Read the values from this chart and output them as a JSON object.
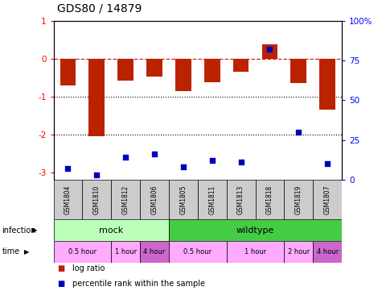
{
  "title": "GDS80 / 14879",
  "samples": [
    "GSM1804",
    "GSM1810",
    "GSM1812",
    "GSM1806",
    "GSM1805",
    "GSM1811",
    "GSM1813",
    "GSM1818",
    "GSM1819",
    "GSM1807"
  ],
  "log_ratio": [
    -0.72,
    -2.05,
    -0.58,
    -0.48,
    -0.85,
    -0.62,
    -0.35,
    0.38,
    -0.65,
    -1.35
  ],
  "percentile": [
    7,
    3,
    14,
    16,
    8,
    12,
    11,
    82,
    30,
    10
  ],
  "ylim_left": [
    -3.2,
    1.0
  ],
  "ylim_right": [
    0,
    100
  ],
  "infection_groups": [
    {
      "label": "mock",
      "start": 0,
      "end": 4,
      "color": "#bbffbb"
    },
    {
      "label": "wildtype",
      "start": 4,
      "end": 10,
      "color": "#44cc44"
    }
  ],
  "time_groups": [
    {
      "label": "0.5 hour",
      "start": 0,
      "end": 2,
      "color": "#ffaaff"
    },
    {
      "label": "1 hour",
      "start": 2,
      "end": 3,
      "color": "#ffaaff"
    },
    {
      "label": "4 hour",
      "start": 3,
      "end": 4,
      "color": "#cc66cc"
    },
    {
      "label": "0.5 hour",
      "start": 4,
      "end": 6,
      "color": "#ffaaff"
    },
    {
      "label": "1 hour",
      "start": 6,
      "end": 8,
      "color": "#ffaaff"
    },
    {
      "label": "2 hour",
      "start": 8,
      "end": 9,
      "color": "#ffaaff"
    },
    {
      "label": "4 hour",
      "start": 9,
      "end": 10,
      "color": "#cc66cc"
    }
  ],
  "bar_color": "#bb2200",
  "dot_color": "#0000bb",
  "ref_line_color": "#cc2222",
  "grid_line_color": "#000000",
  "bar_width": 0.55,
  "title_fontsize": 10,
  "tick_fontsize": 7.5,
  "sample_fontsize": 5.5,
  "legend_marker_size": 7
}
